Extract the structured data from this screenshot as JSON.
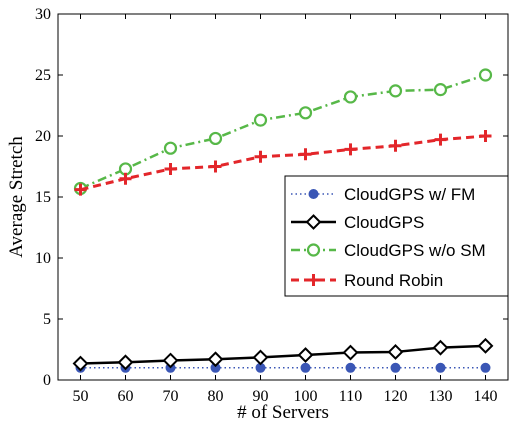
{
  "chart_data": {
    "type": "line",
    "title": "",
    "xlabel": "# of Servers",
    "ylabel": "Average Stretch",
    "x": [
      50,
      60,
      70,
      80,
      90,
      100,
      110,
      120,
      130,
      140
    ],
    "xticks": [
      "50",
      "60",
      "70",
      "80",
      "90",
      "100",
      "110",
      "120",
      "130",
      "140"
    ],
    "yticks": [
      "0",
      "5",
      "10",
      "15",
      "20",
      "25",
      "30"
    ],
    "xlim": [
      45,
      145
    ],
    "ylim": [
      0,
      30
    ],
    "grid": false,
    "legend_position": "center-right",
    "series": [
      {
        "name": "CloudGPS w/ FM",
        "values": [
          1.0,
          1.0,
          1.0,
          1.0,
          1.0,
          1.0,
          1.0,
          1.0,
          1.0,
          1.0
        ],
        "color": "#3a56b5",
        "line": "dotted",
        "marker": "filled-circle"
      },
      {
        "name": "CloudGPS",
        "values": [
          1.35,
          1.45,
          1.6,
          1.7,
          1.85,
          2.05,
          2.25,
          2.3,
          2.65,
          2.8
        ],
        "color": "#000000",
        "line": "solid",
        "marker": "open-diamond"
      },
      {
        "name": "CloudGPS w/o SM",
        "values": [
          15.7,
          17.3,
          19.0,
          19.8,
          21.3,
          21.9,
          23.2,
          23.7,
          23.8,
          25.0
        ],
        "color": "#57b848",
        "line": "dash-dot",
        "marker": "open-circle"
      },
      {
        "name": "Round Robin",
        "values": [
          15.6,
          16.5,
          17.3,
          17.5,
          18.3,
          18.5,
          18.9,
          19.2,
          19.7,
          20.0
        ],
        "color": "#e3262a",
        "line": "dashed",
        "marker": "plus"
      }
    ]
  }
}
